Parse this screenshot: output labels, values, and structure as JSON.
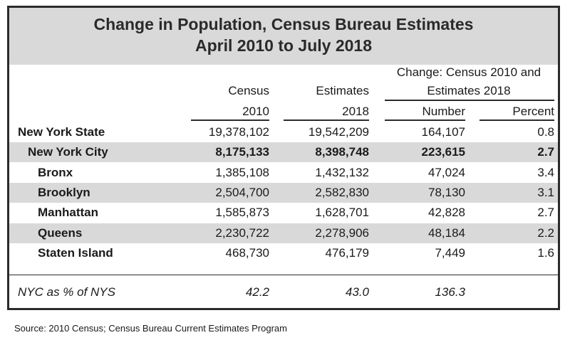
{
  "title": {
    "line1": "Change in Population, Census Bureau Estimates",
    "line2": "April 2010 to July 2018"
  },
  "chart_data": {
    "type": "table",
    "headers": {
      "census_top": "Census",
      "census_bottom": "2010",
      "estimates_top": "Estimates",
      "estimates_bottom": "2018",
      "change_line1": "Change: Census 2010 and",
      "change_line2": "Estimates 2018",
      "number": "Number",
      "percent": "Percent"
    },
    "rows": [
      {
        "name": "New York State",
        "census_2010": "19,378,102",
        "estimates_2018": "19,542,209",
        "number": "164,107",
        "percent": "0.8"
      },
      {
        "name": "New York City",
        "census_2010": "8,175,133",
        "estimates_2018": "8,398,748",
        "number": "223,615",
        "percent": "2.7"
      },
      {
        "name": "Bronx",
        "census_2010": "1,385,108",
        "estimates_2018": "1,432,132",
        "number": "47,024",
        "percent": "3.4"
      },
      {
        "name": "Brooklyn",
        "census_2010": "2,504,700",
        "estimates_2018": "2,582,830",
        "number": "78,130",
        "percent": "3.1"
      },
      {
        "name": "Manhattan",
        "census_2010": "1,585,873",
        "estimates_2018": "1,628,701",
        "number": "42,828",
        "percent": "2.7"
      },
      {
        "name": "Queens",
        "census_2010": "2,230,722",
        "estimates_2018": "2,278,906",
        "number": "48,184",
        "percent": "2.2"
      },
      {
        "name": "Staten Island",
        "census_2010": "468,730",
        "estimates_2018": "476,179",
        "number": "7,449",
        "percent": "1.6"
      }
    ],
    "footer_row": {
      "name": "NYC as % of NYS",
      "census_2010": "42.2",
      "estimates_2018": "43.0",
      "number": "136.3",
      "percent": ""
    }
  },
  "source": "Source: 2010 Census; Census Bureau Current Estimates Program",
  "colors": {
    "band": "#d9d9d9",
    "border": "#2b2b2b"
  }
}
